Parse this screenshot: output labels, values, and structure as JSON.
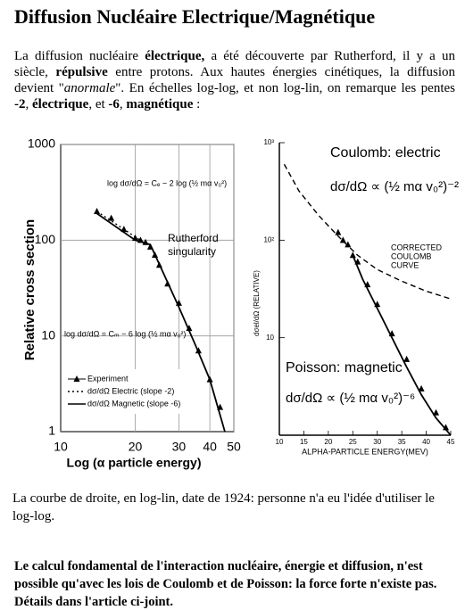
{
  "title": "Diffusion Nucléaire Electrique/Magnétique",
  "intro": [
    {
      "text": "La diffusion nucléaire ",
      "style": "normal"
    },
    {
      "text": "électrique,",
      "style": "bold"
    },
    {
      "text": " a été découverte par Rutherford, il y a un siècle, ",
      "style": "normal"
    },
    {
      "text": "répulsive",
      "style": "bold"
    },
    {
      "text": " entre protons. Aux hautes énergies cinétiques, la diffusion devient \"",
      "style": "normal"
    },
    {
      "text": "anormale",
      "style": "italic"
    },
    {
      "text": "\". En échelles log-log, et non log-lin, on remarque les pentes ",
      "style": "normal"
    },
    {
      "text": "-2",
      "style": "bold"
    },
    {
      "text": ", ",
      "style": "normal"
    },
    {
      "text": "électrique",
      "style": "bold"
    },
    {
      "text": ", et ",
      "style": "normal"
    },
    {
      "text": "-6",
      "style": "bold"
    },
    {
      "text": ", ",
      "style": "normal"
    },
    {
      "text": "magnétique",
      "style": "bold"
    },
    {
      "text": " :",
      "style": "normal"
    }
  ],
  "figures": [
    {
      "type": "line",
      "xlog": true,
      "ylog": true,
      "grid": true,
      "legend": "lower left",
      "xlabel": "Log (α particle energy)",
      "ylabel": "Relative cross section",
      "xlim": [
        10,
        50
      ],
      "ylim": [
        1,
        1000
      ],
      "xticks": [
        10,
        20,
        30,
        40,
        50
      ],
      "yticks": [
        1,
        10,
        100,
        1000
      ],
      "annotations": [
        "log dσ/dΩ = Cₑ − 2 log (½ mα v₀²)",
        "Rutherford",
        "singularity",
        "log dσ/dΩ = Cₘ − 6 log (½ mα v₀²)"
      ],
      "series": [
        {
          "name": "Experiment",
          "style": "markers",
          "color": "#000000",
          "x": [
            14,
            16,
            18,
            20,
            21,
            22,
            23,
            24,
            25,
            27,
            30,
            33,
            36,
            40,
            44
          ],
          "values": [
            200,
            170,
            130,
            105,
            100,
            95,
            85,
            70,
            55,
            35,
            22,
            12,
            7,
            3.5,
            1.8
          ]
        },
        {
          "name": "dσ/dΩ Electric (slope -2)",
          "style": "dotted",
          "color": "#000000",
          "x": [
            14,
            18,
            23
          ],
          "values": [
            200,
            130,
            85
          ]
        },
        {
          "name": "dσ/dΩ Magnetic (slope -6)",
          "style": "solid",
          "color": "#000000",
          "x": [
            14,
            20,
            23,
            26,
            30,
            35,
            40,
            46
          ],
          "values": [
            190,
            100,
            90,
            45,
            20,
            8,
            3.5,
            1
          ]
        }
      ]
    },
    {
      "type": "line",
      "xlog": false,
      "ylog": true,
      "grid": false,
      "xlabel": "ALPHA-PARTICLE ENERGY(MEV)",
      "ylabel": "dσel/dΩ (RELATIVE)",
      "xlim": [
        10,
        45
      ],
      "ylim": [
        1,
        1000
      ],
      "xticks": [
        10,
        15,
        20,
        25,
        30,
        35,
        40,
        45
      ],
      "yticks": [
        {
          "value": 1000,
          "label": "10³"
        },
        {
          "value": 100,
          "label": "10²"
        },
        10
      ],
      "annotations": [
        "Coulomb: electric",
        "dσ/dΩ ∝ (½ mα v₀²)⁻²",
        "CORRECTED",
        "COULOMB",
        "CURVE",
        "Poisson: magnetic",
        "dσ/dΩ ∝ (½ mα v₀²)⁻⁶"
      ],
      "series": [
        {
          "style": "dashed",
          "color": "#000000",
          "x": [
            11,
            14,
            18,
            22,
            26,
            30,
            35,
            40,
            45
          ],
          "values": [
            600,
            320,
            180,
            110,
            70,
            50,
            38,
            30,
            25
          ]
        },
        {
          "style": "solid",
          "color": "#000000",
          "x": [
            25,
            27,
            30,
            33,
            36,
            39,
            42,
            45
          ],
          "values": [
            70,
            40,
            20,
            10,
            5,
            2.6,
            1.5,
            1
          ]
        },
        {
          "style": "markers",
          "color": "#000000",
          "x": [
            22,
            23,
            24,
            25,
            26,
            28,
            30,
            33,
            36,
            39,
            42,
            44
          ],
          "values": [
            120,
            100,
            90,
            70,
            60,
            35,
            22,
            11,
            6,
            3,
            1.7,
            1.2
          ]
        }
      ]
    }
  ],
  "caption": " La courbe de droite, en log-lin, date de 1924: personne n'a eu l'idée d'utiliser le log-log.",
  "conclusion": "Le calcul fondamental de l'interaction nucléaire, énergie et diffusion, n'est possible qu'avec les lois de Coulomb et de Poisson: la force forte n'existe pas. Détails dans l'article ci-joint."
}
